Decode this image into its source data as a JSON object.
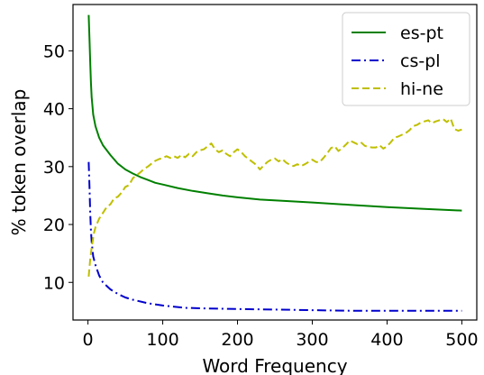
{
  "chart_data": {
    "type": "line",
    "title": "",
    "xlabel": "Word Frequency",
    "ylabel": "% token overlap",
    "xlim": [
      -20,
      520
    ],
    "ylim": [
      3.5,
      58
    ],
    "xticks": [
      0,
      100,
      200,
      300,
      400,
      500
    ],
    "yticks": [
      10,
      20,
      30,
      40,
      50
    ],
    "grid": false,
    "legend": "top-right",
    "series": [
      {
        "name": "es-pt",
        "color": "#008000",
        "style": "solid",
        "x": [
          1,
          2,
          3,
          4,
          5,
          7,
          10,
          15,
          20,
          30,
          40,
          50,
          60,
          70,
          80,
          90,
          100,
          120,
          140,
          160,
          180,
          200,
          230,
          260,
          300,
          350,
          400,
          450,
          500
        ],
        "y": [
          56.2,
          52,
          48,
          44.5,
          42,
          39,
          37,
          35,
          33.7,
          32,
          30.5,
          29.5,
          28.8,
          28.2,
          27.7,
          27.2,
          26.9,
          26.3,
          25.8,
          25.4,
          25,
          24.7,
          24.3,
          24.1,
          23.8,
          23.4,
          23,
          22.7,
          22.4
        ]
      },
      {
        "name": "cs-pl",
        "color": "#0000cc",
        "style": "dashdot",
        "x": [
          1,
          2,
          3,
          4,
          5,
          7,
          10,
          15,
          20,
          30,
          40,
          50,
          60,
          80,
          100,
          130,
          160,
          200,
          250,
          300,
          350,
          400,
          450,
          500
        ],
        "y": [
          30.8,
          26.5,
          22,
          19,
          17,
          14.5,
          13,
          11.2,
          10,
          8.8,
          8,
          7.4,
          7,
          6.4,
          6,
          5.6,
          5.5,
          5.4,
          5.3,
          5.2,
          5.1,
          5.1,
          5.1,
          5.1
        ]
      },
      {
        "name": "hi-ne",
        "color": "#bfbf00",
        "style": "dashed",
        "x": [
          1,
          3,
          5,
          8,
          10,
          15,
          20,
          25,
          30,
          35,
          40,
          45,
          50,
          55,
          60,
          65,
          70,
          75,
          80,
          85,
          90,
          95,
          100,
          105,
          110,
          115,
          120,
          125,
          130,
          135,
          140,
          145,
          150,
          155,
          160,
          165,
          170,
          175,
          180,
          185,
          190,
          195,
          200,
          205,
          210,
          215,
          220,
          225,
          230,
          235,
          240,
          245,
          250,
          255,
          260,
          265,
          270,
          275,
          280,
          285,
          290,
          295,
          300,
          305,
          310,
          315,
          320,
          325,
          330,
          335,
          340,
          345,
          350,
          355,
          360,
          365,
          370,
          375,
          380,
          385,
          390,
          395,
          400,
          405,
          410,
          415,
          420,
          425,
          430,
          435,
          440,
          445,
          450,
          455,
          460,
          465,
          470,
          475,
          480,
          485,
          490,
          495,
          500
        ],
        "y": [
          11,
          14,
          16,
          18.5,
          19.5,
          21,
          22,
          23,
          23.5,
          24.5,
          24.8,
          25.5,
          26.5,
          26.8,
          28,
          28.5,
          29,
          29.6,
          30,
          30.5,
          31,
          31.3,
          31.5,
          31.8,
          31.5,
          31.8,
          31.5,
          32,
          31.6,
          32.2,
          31.8,
          32.5,
          32.8,
          33,
          33.5,
          34,
          33,
          32.5,
          32.8,
          32.2,
          31.8,
          32.5,
          33,
          32.5,
          31.8,
          31.3,
          30.8,
          30.3,
          29.5,
          30.2,
          30.8,
          31.2,
          31.4,
          30.9,
          31.3,
          30.7,
          30.3,
          30.1,
          30.4,
          30.1,
          30.4,
          30.8,
          31.2,
          30.8,
          30.8,
          31.5,
          32.3,
          33.2,
          33.5,
          32.7,
          33.2,
          33.8,
          34.5,
          34.2,
          33.9,
          34.2,
          33.6,
          33.4,
          33.3,
          33.3,
          33.7,
          33.1,
          33.5,
          34.2,
          35,
          35.2,
          35.5,
          35.8,
          36.3,
          37,
          37.2,
          37.6,
          37.8,
          38,
          37.5,
          37.8,
          38,
          38.2,
          37.7,
          38.3,
          36.5,
          36.2,
          36.4
        ]
      }
    ]
  }
}
